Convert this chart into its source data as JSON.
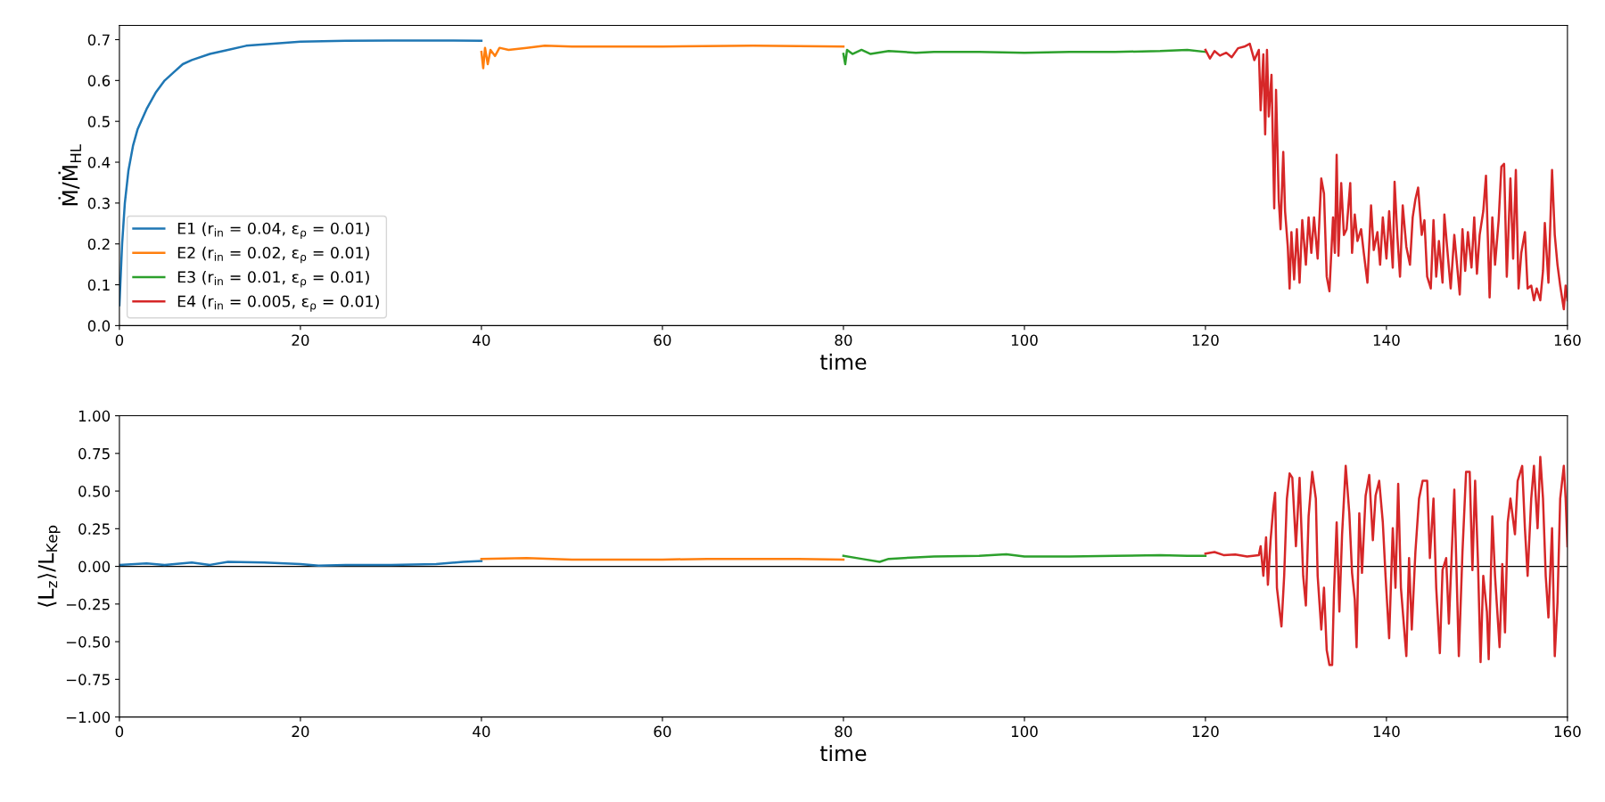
{
  "chart_data": [
    {
      "type": "line",
      "xlabel": "time",
      "ylabel": "Ṁ/Ṁ$_{HL}$",
      "xlim": [
        0,
        160
      ],
      "xticks": [
        0,
        20,
        40,
        60,
        80,
        100,
        120,
        140,
        160
      ],
      "ylim": [
        0,
        0.735
      ],
      "yticks": [
        {
          "value": 0,
          "label": "0.0"
        },
        0.1,
        0.2,
        0.3,
        0.4,
        0.5,
        0.6,
        0.7
      ],
      "legend": "bottom left",
      "series": [
        {
          "name": "E1 (r$_{in}$ = 0.04, ε$_{ρ}$ = 0.01)",
          "color": "#1f77b4",
          "x": [
            0,
            0.3,
            0.6,
            1,
            1.5,
            2,
            3,
            4,
            5,
            6,
            7,
            8,
            10,
            12,
            14,
            17,
            20,
            25,
            30,
            35,
            40
          ],
          "values": [
            0.05,
            0.2,
            0.3,
            0.38,
            0.44,
            0.48,
            0.53,
            0.57,
            0.6,
            0.62,
            0.64,
            0.65,
            0.665,
            0.675,
            0.685,
            0.69,
            0.695,
            0.697,
            0.698,
            0.698,
            0.697
          ]
        },
        {
          "name": "E2 (r$_{in}$ = 0.02, ε$_{ρ}$ = 0.01)",
          "color": "#ff7f0e",
          "x": [
            40,
            40.2,
            40.4,
            40.7,
            41,
            41.5,
            42,
            43,
            45,
            47,
            50,
            60,
            70,
            80
          ],
          "values": [
            0.67,
            0.63,
            0.68,
            0.64,
            0.675,
            0.66,
            0.68,
            0.675,
            0.68,
            0.685,
            0.683,
            0.683,
            0.685,
            0.683
          ]
        },
        {
          "name": "E3 (r$_{in}$ = 0.01, ε$_{ρ}$ = 0.01)",
          "color": "#2ca02c",
          "x": [
            80,
            80.2,
            80.4,
            81,
            82,
            83,
            85,
            88,
            90,
            95,
            100,
            105,
            110,
            115,
            118,
            120
          ],
          "values": [
            0.665,
            0.64,
            0.675,
            0.665,
            0.675,
            0.665,
            0.672,
            0.668,
            0.67,
            0.67,
            0.668,
            0.67,
            0.67,
            0.672,
            0.675,
            0.67
          ]
        },
        {
          "name": "E4 (r$_{in}$ = 0.005, ε$_{ρ}$ = 0.01)",
          "color": "#d62728",
          "x": [
            120.0,
            120.5,
            121.0,
            121.6,
            122.3,
            122.9,
            123.6,
            124.3,
            124.9,
            125.4,
            125.9,
            126.1,
            126.4,
            126.6,
            126.8,
            127.0,
            127.3,
            127.6,
            127.8,
            128.1,
            128.3,
            128.6,
            128.8,
            129.1,
            129.3,
            129.5,
            129.8,
            130.1,
            130.4,
            130.7,
            131.1,
            131.4,
            131.7,
            132.0,
            132.4,
            132.8,
            133.1,
            133.4,
            133.7,
            134.1,
            134.3,
            134.5,
            134.7,
            135.0,
            135.3,
            135.6,
            136.0,
            136.2,
            136.5,
            136.8,
            137.2,
            137.5,
            137.9,
            138.3,
            138.6,
            139.0,
            139.3,
            139.6,
            140.0,
            140.3,
            140.7,
            140.9,
            141.2,
            141.5,
            141.8,
            142.2,
            142.6,
            142.9,
            143.2,
            143.5,
            143.9,
            144.2,
            144.5,
            144.9,
            145.2,
            145.5,
            145.8,
            146.2,
            146.4,
            146.7,
            147.1,
            147.5,
            147.8,
            148.1,
            148.4,
            148.7,
            149.0,
            149.4,
            149.7,
            150.0,
            150.3,
            150.7,
            151.0,
            151.4,
            151.7,
            152.0,
            152.4,
            152.7,
            153.0,
            153.3,
            153.7,
            154.0,
            154.3,
            154.6,
            154.9,
            155.3,
            155.6,
            156.0,
            156.3,
            156.6,
            157.0,
            157.3,
            157.5,
            157.9,
            158.1,
            158.3,
            158.6,
            158.9,
            159.2,
            159.6,
            159.8,
            160.0
          ],
          "values": [
            0.675,
            0.654,
            0.672,
            0.661,
            0.668,
            0.657,
            0.679,
            0.683,
            0.69,
            0.65,
            0.675,
            0.527,
            0.664,
            0.468,
            0.675,
            0.512,
            0.614,
            0.287,
            0.577,
            0.309,
            0.236,
            0.425,
            0.28,
            0.193,
            0.091,
            0.229,
            0.113,
            0.236,
            0.105,
            0.258,
            0.149,
            0.265,
            0.178,
            0.265,
            0.164,
            0.36,
            0.323,
            0.12,
            0.084,
            0.265,
            0.178,
            0.418,
            0.171,
            0.349,
            0.222,
            0.236,
            0.349,
            0.178,
            0.272,
            0.207,
            0.236,
            0.178,
            0.105,
            0.294,
            0.185,
            0.229,
            0.149,
            0.265,
            0.164,
            0.28,
            0.142,
            0.352,
            0.222,
            0.12,
            0.294,
            0.193,
            0.149,
            0.265,
            0.309,
            0.338,
            0.222,
            0.258,
            0.12,
            0.091,
            0.258,
            0.12,
            0.207,
            0.105,
            0.272,
            0.193,
            0.091,
            0.222,
            0.149,
            0.076,
            0.236,
            0.134,
            0.229,
            0.142,
            0.265,
            0.127,
            0.222,
            0.28,
            0.367,
            0.069,
            0.265,
            0.149,
            0.258,
            0.389,
            0.396,
            0.12,
            0.36,
            0.164,
            0.381,
            0.091,
            0.178,
            0.229,
            0.091,
            0.098,
            0.062,
            0.091,
            0.062,
            0.134,
            0.251,
            0.105,
            0.244,
            0.381,
            0.222,
            0.149,
            0.098,
            0.04,
            0.098,
            0.062
          ]
        }
      ]
    },
    {
      "type": "line",
      "xlabel": "time",
      "ylabel": "⟨L$_{z}$⟩/L$_{Kep}$",
      "xlim": [
        0,
        160
      ],
      "xticks": [
        0,
        20,
        40,
        60,
        80,
        100,
        120,
        140,
        160
      ],
      "ylim": [
        -1,
        1
      ],
      "yticks": [
        {
          "value": -1,
          "label": "−1.00"
        },
        {
          "value": -0.75,
          "label": "−0.75"
        },
        {
          "value": -0.5,
          "label": "−0.50"
        },
        {
          "value": -0.25,
          "label": "−0.25"
        },
        {
          "value": 0,
          "label": "0.00"
        },
        {
          "value": 0.25,
          "label": "0.25"
        },
        {
          "value": 0.5,
          "label": "0.50"
        },
        {
          "value": 0.75,
          "label": "0.75"
        },
        {
          "value": 1,
          "label": "1.00"
        }
      ],
      "ref_lines": [
        {
          "axis": "y",
          "value": 0,
          "color": "#000000"
        }
      ],
      "series": [
        {
          "color": "#1f77b4",
          "x": [
            0,
            3,
            5,
            8,
            10,
            12,
            16,
            20,
            22,
            25,
            30,
            35,
            38,
            40
          ],
          "values": [
            0.01,
            0.02,
            0.01,
            0.025,
            0.01,
            0.03,
            0.025,
            0.015,
            0.005,
            0.01,
            0.01,
            0.015,
            0.03,
            0.035
          ]
        },
        {
          "color": "#ff7f0e",
          "x": [
            40,
            45,
            50,
            55,
            60,
            65,
            70,
            75,
            80
          ],
          "values": [
            0.05,
            0.055,
            0.045,
            0.045,
            0.045,
            0.05,
            0.05,
            0.05,
            0.045
          ]
        },
        {
          "color": "#2ca02c",
          "x": [
            80,
            82,
            84,
            85,
            88,
            90,
            95,
            98,
            100,
            105,
            110,
            115,
            118,
            120
          ],
          "values": [
            0.07,
            0.05,
            0.03,
            0.05,
            0.06,
            0.065,
            0.07,
            0.08,
            0.065,
            0.065,
            0.07,
            0.075,
            0.07,
            0.07
          ]
        },
        {
          "color": "#d62728",
          "x": [
            120.0,
            121.0,
            122.0,
            123.3,
            124.6,
            125.9,
            126.1,
            126.4,
            126.7,
            126.9,
            127.2,
            127.5,
            127.7,
            127.9,
            128.2,
            128.4,
            128.7,
            129.0,
            129.3,
            129.6,
            130.0,
            130.4,
            130.8,
            131.1,
            131.4,
            131.8,
            132.2,
            132.4,
            132.8,
            133.1,
            133.4,
            133.7,
            134.0,
            134.2,
            134.5,
            134.8,
            135.1,
            135.5,
            135.9,
            136.2,
            136.5,
            136.7,
            137.0,
            137.3,
            137.7,
            138.1,
            138.5,
            138.8,
            139.2,
            139.6,
            139.9,
            140.3,
            140.7,
            141.0,
            141.3,
            141.6,
            142.2,
            142.5,
            142.8,
            143.2,
            143.6,
            144.0,
            144.5,
            144.8,
            145.2,
            145.5,
            145.9,
            146.2,
            146.6,
            146.9,
            147.3,
            147.5,
            148.0,
            148.4,
            148.8,
            149.2,
            149.5,
            149.8,
            150.1,
            150.4,
            150.7,
            151.1,
            151.3,
            151.7,
            152.0,
            152.5,
            152.8,
            153.1,
            153.4,
            153.7,
            154.2,
            154.5,
            155.0,
            155.3,
            155.6,
            156.0,
            156.3,
            156.7,
            157.0,
            157.3,
            157.6,
            157.9,
            158.3,
            158.6,
            158.9,
            159.2,
            159.6,
            159.8,
            160.0
          ],
          "values": [
            0.085,
            0.095,
            0.075,
            0.079,
            0.065,
            0.075,
            0.134,
            -0.063,
            0.193,
            -0.122,
            0.174,
            0.39,
            0.489,
            -0.142,
            -0.3,
            -0.399,
            -0.063,
            0.45,
            0.617,
            0.588,
            0.134,
            0.588,
            -0.063,
            -0.26,
            0.332,
            0.627,
            0.45,
            -0.063,
            -0.419,
            -0.142,
            -0.556,
            -0.655,
            -0.655,
            -0.181,
            0.292,
            -0.3,
            0.213,
            0.667,
            0.352,
            -0.043,
            -0.221,
            -0.536,
            0.352,
            -0.043,
            0.469,
            0.607,
            0.174,
            0.469,
            0.568,
            0.292,
            -0.063,
            -0.477,
            0.253,
            -0.142,
            0.548,
            -0.142,
            -0.596,
            0.055,
            -0.419,
            0.095,
            0.45,
            0.568,
            0.568,
            0.055,
            0.45,
            -0.142,
            -0.576,
            -0.024,
            0.055,
            -0.379,
            0.213,
            0.509,
            -0.596,
            0.095,
            0.627,
            0.627,
            -0.024,
            0.568,
            0.055,
            -0.635,
            -0.063,
            -0.3,
            -0.616,
            0.332,
            -0.063,
            -0.536,
            0.016,
            -0.438,
            0.292,
            0.45,
            0.213,
            0.568,
            0.667,
            0.253,
            -0.063,
            0.45,
            0.667,
            0.253,
            0.726,
            0.45,
            -0.063,
            -0.339,
            0.253,
            -0.596,
            -0.241,
            0.45,
            0.667,
            0.45,
            0.134
          ]
        }
      ]
    }
  ]
}
